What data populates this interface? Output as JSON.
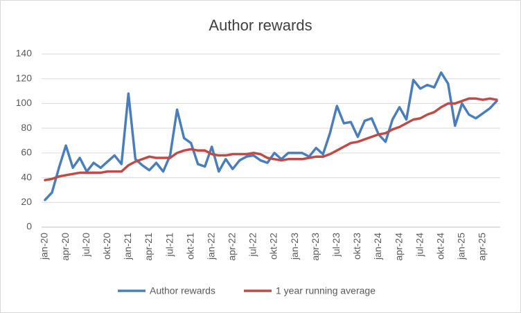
{
  "chart_data": {
    "type": "line",
    "title": "Author rewards",
    "categories": [
      "jan-20",
      null,
      null,
      "apr-20",
      null,
      null,
      "jul-20",
      null,
      null,
      "okt-20",
      null,
      null,
      "jan-21",
      null,
      null,
      "apr-21",
      null,
      null,
      "jul-21",
      null,
      null,
      "okt-21",
      null,
      null,
      "jan-22",
      null,
      null,
      "apr-22",
      null,
      null,
      "jul-22",
      null,
      null,
      "okt-22",
      null,
      null,
      "jan-23",
      null,
      null,
      "apr-23",
      null,
      null,
      "jul-23",
      null,
      null,
      "okt-23",
      null,
      null,
      "jan-24",
      null,
      null,
      "apr-24",
      null,
      null,
      "jul-24",
      null,
      null,
      "okt-24",
      null,
      null,
      "jan-25",
      null,
      null,
      "apr-25",
      null,
      null
    ],
    "series": [
      {
        "name": "Author rewards",
        "color": "#4a7ebb",
        "values": [
          22,
          28,
          48,
          66,
          48,
          56,
          45,
          52,
          48,
          53,
          58,
          51,
          108,
          55,
          50,
          46,
          52,
          45,
          58,
          95,
          72,
          68,
          51,
          49,
          65,
          45,
          55,
          47,
          54,
          57,
          58,
          54,
          52,
          60,
          55,
          60,
          60,
          60,
          57,
          64,
          59,
          76,
          98,
          84,
          85,
          73,
          86,
          88,
          75,
          69,
          87,
          97,
          87,
          119,
          112,
          115,
          113,
          125,
          116,
          82,
          100,
          91,
          88,
          92,
          96,
          102
        ]
      },
      {
        "name": "1 year running average",
        "color": "#be4b48",
        "values": [
          38,
          39,
          41,
          42,
          43,
          44,
          44,
          44,
          44,
          45,
          45,
          45,
          50,
          53,
          55,
          57,
          56,
          56,
          56,
          60,
          62,
          63,
          62,
          62,
          59,
          58,
          58,
          59,
          59,
          59,
          60,
          59,
          56,
          55,
          54,
          55,
          55,
          55,
          56,
          57,
          57,
          59,
          62,
          65,
          68,
          69,
          71,
          73,
          75,
          76,
          79,
          81,
          84,
          87,
          88,
          91,
          93,
          97,
          100,
          100,
          102,
          104,
          104,
          103,
          104,
          103
        ]
      }
    ],
    "ylim": [
      0,
      140
    ],
    "yticks": [
      0,
      20,
      40,
      60,
      80,
      100,
      120,
      140
    ],
    "grid": true,
    "legend": "bottom"
  }
}
